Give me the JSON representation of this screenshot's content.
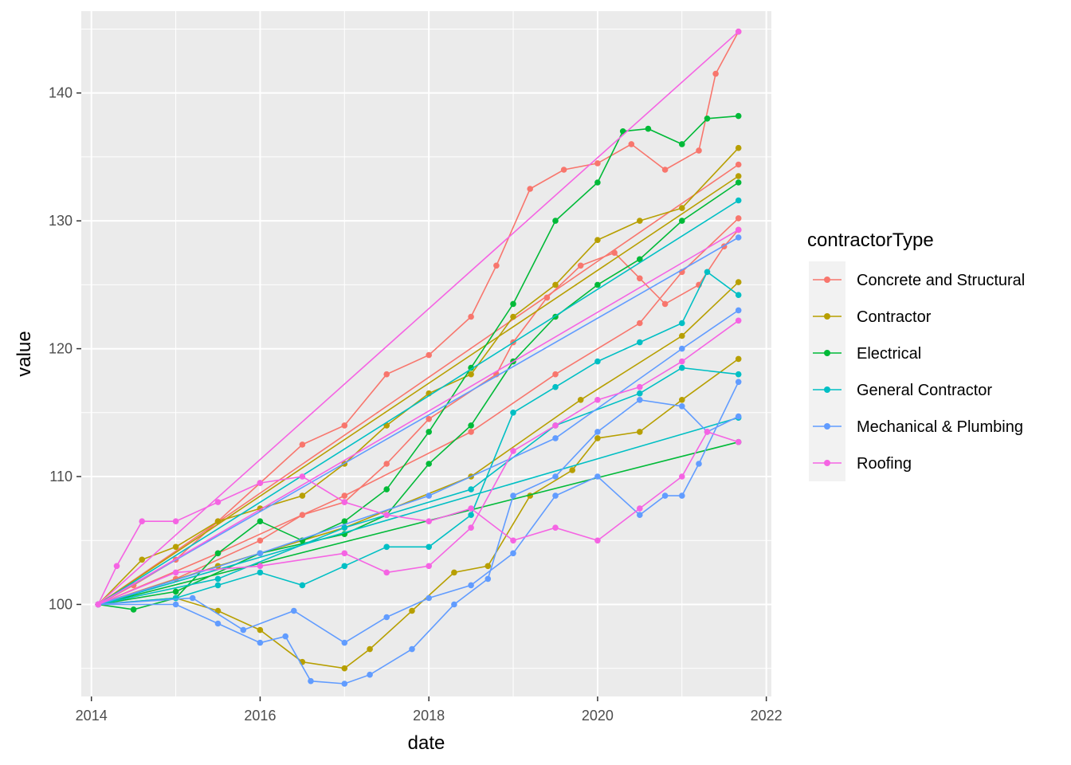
{
  "chart_data": {
    "type": "line",
    "xlabel": "date",
    "ylabel": "value",
    "xlim": [
      2013.88,
      2022.06
    ],
    "ylim": [
      92.8,
      146.4
    ],
    "x_ticks": [
      2014,
      2016,
      2018,
      2020,
      2022
    ],
    "x_tick_labels": [
      "2014",
      "2016",
      "2018",
      "2020",
      "2022"
    ],
    "y_ticks": [
      100,
      110,
      120,
      130,
      140
    ],
    "y_tick_labels": [
      "100",
      "110",
      "120",
      "130",
      "140"
    ],
    "grid": true,
    "legend": {
      "title": "contractorType",
      "position": "right"
    },
    "colors": {
      "Concrete and Structural": "#F8766D",
      "Contractor": "#B79F00",
      "Electrical": "#00BA38",
      "General Contractor": "#00BFC4",
      "Mechanical & Plumbing": "#619CFF",
      "Roofing": "#F564E3"
    },
    "series": [
      {
        "name": "Concrete and Structural",
        "paths": [
          {
            "x": [
              2014.08,
              2014.5,
              2015.0,
              2015.5,
              2016.0,
              2016.5,
              2017.0,
              2017.5,
              2018.0,
              2018.5,
              2018.8,
              2019.2,
              2019.6,
              2020.0,
              2020.4,
              2020.8,
              2021.2,
              2021.4,
              2021.67
            ],
            "y": [
              100,
              101.5,
              103.5,
              106.5,
              109.5,
              112.5,
              114.0,
              118.0,
              119.5,
              122.5,
              126.5,
              132.5,
              134.0,
              134.5,
              136.0,
              134.0,
              135.5,
              141.5,
              144.8
            ]
          },
          {
            "x": [
              2014.08,
              2015.0,
              2016.0,
              2016.5,
              2017.0,
              2017.5,
              2018.0,
              2018.8,
              2019.0,
              2019.4,
              2019.8,
              2020.2,
              2020.5,
              2020.8,
              2021.2,
              2021.5,
              2021.67
            ],
            "y": [
              100,
              102.0,
              105.0,
              107.0,
              108.0,
              111.0,
              114.5,
              118.0,
              120.5,
              124.0,
              126.5,
              127.5,
              125.5,
              123.5,
              125.0,
              128.0,
              129.3
            ]
          },
          {
            "x": [
              2014.08,
              2015.5,
              2017.0,
              2018.5,
              2019.5,
              2020.5,
              2021.0,
              2021.67
            ],
            "y": [
              100,
              104.0,
              108.5,
              113.5,
              118.0,
              122.0,
              126.0,
              130.2
            ]
          },
          {
            "x": [
              2014.08,
              2021.67
            ],
            "y": [
              100,
              134.4
            ]
          }
        ]
      },
      {
        "name": "Contractor",
        "paths": [
          {
            "x": [
              2014.08,
              2014.6,
              2015.0,
              2015.5,
              2016.0,
              2016.5,
              2017.0,
              2017.5,
              2018.0,
              2018.5,
              2019.0,
              2019.5,
              2020.0,
              2020.5,
              2021.0,
              2021.67
            ],
            "y": [
              100,
              103.5,
              104.5,
              106.5,
              107.5,
              108.5,
              111.0,
              114.0,
              116.5,
              118.0,
              122.5,
              125.0,
              128.5,
              130.0,
              131.0,
              135.7
            ]
          },
          {
            "x": [
              2014.08,
              2015.0,
              2015.5,
              2016.0,
              2016.5,
              2017.0,
              2017.3,
              2017.8,
              2018.3,
              2018.7,
              2019.2,
              2019.7,
              2020.0,
              2020.5,
              2021.0,
              2021.67
            ],
            "y": [
              100,
              100.5,
              99.5,
              98.0,
              95.5,
              95.0,
              96.5,
              99.5,
              102.5,
              103.0,
              108.5,
              110.5,
              113.0,
              113.5,
              116.0,
              119.2
            ]
          },
          {
            "x": [
              2014.08,
              2015.5,
              2017.0,
              2018.5,
              2019.8,
              2021.0,
              2021.67
            ],
            "y": [
              100,
              103.0,
              106.0,
              110.0,
              116.0,
              121.0,
              125.2
            ]
          },
          {
            "x": [
              2014.08,
              2021.67
            ],
            "y": [
              100,
              133.5
            ]
          }
        ]
      },
      {
        "name": "Electrical",
        "paths": [
          {
            "x": [
              2014.08,
              2014.5,
              2015.0,
              2015.5,
              2016.0,
              2016.5,
              2017.0,
              2017.5,
              2018.0,
              2018.5,
              2019.0,
              2019.5,
              2020.0,
              2020.3,
              2020.6,
              2021.0,
              2021.3,
              2021.67
            ],
            "y": [
              100,
              99.6,
              100.5,
              104.0,
              106.5,
              105.0,
              106.5,
              109.0,
              113.5,
              118.5,
              123.5,
              130.0,
              133.0,
              137.0,
              137.2,
              136.0,
              138.0,
              138.2
            ]
          },
          {
            "x": [
              2014.08,
              2015.0,
              2016.0,
              2017.0,
              2017.5,
              2018.0,
              2018.5,
              2019.0,
              2019.5,
              2020.0,
              2020.5,
              2021.0,
              2021.67
            ],
            "y": [
              100,
              101.0,
              104.0,
              105.5,
              107.0,
              111.0,
              114.0,
              119.0,
              122.5,
              125.0,
              127.0,
              130.0,
              133.0
            ]
          },
          {
            "x": [
              2014.08,
              2021.67
            ],
            "y": [
              100,
              112.7
            ]
          }
        ]
      },
      {
        "name": "General Contractor",
        "paths": [
          {
            "x": [
              2014.08,
              2015.0,
              2015.5,
              2016.0,
              2016.5,
              2017.0,
              2017.5,
              2018.0,
              2018.5,
              2019.0,
              2019.5,
              2020.0,
              2020.5,
              2021.0,
              2021.3,
              2021.67
            ],
            "y": [
              100,
              100.5,
              101.5,
              102.5,
              101.5,
              103.0,
              104.5,
              104.5,
              107.0,
              115.0,
              117.0,
              119.0,
              120.5,
              122.0,
              126.0,
              124.2
            ]
          },
          {
            "x": [
              2014.08,
              2015.5,
              2017.0,
              2018.5,
              2019.5,
              2020.5,
              2021.0,
              2021.67
            ],
            "y": [
              100,
              102.0,
              106.0,
              109.0,
              114.0,
              116.5,
              118.5,
              118.0
            ]
          },
          {
            "x": [
              2014.08,
              2021.67
            ],
            "y": [
              100,
              131.6
            ]
          },
          {
            "x": [
              2014.08,
              2021.67
            ],
            "y": [
              100,
              114.6
            ]
          }
        ]
      },
      {
        "name": "Mechanical & Plumbing",
        "paths": [
          {
            "x": [
              2014.08,
              2015.0,
              2015.5,
              2016.0,
              2016.3,
              2016.6,
              2017.0,
              2017.3,
              2017.8,
              2018.3,
              2018.7,
              2019.0,
              2019.5,
              2020.0,
              2020.5,
              2021.0,
              2021.3,
              2021.67
            ],
            "y": [
              100,
              100.0,
              98.5,
              97.0,
              97.5,
              94.0,
              93.8,
              94.5,
              96.5,
              100.0,
              102.0,
              108.5,
              110.0,
              113.5,
              116.0,
              115.5,
              113.5,
              114.7
            ]
          },
          {
            "x": [
              2014.08,
              2015.2,
              2015.8,
              2016.4,
              2017.0,
              2017.5,
              2018.0,
              2018.5,
              2019.0,
              2019.5,
              2020.0,
              2020.5,
              2020.8,
              2021.0,
              2021.2,
              2021.67
            ],
            "y": [
              100,
              100.5,
              98.0,
              99.5,
              97.0,
              99.0,
              100.5,
              101.5,
              104.0,
              108.5,
              110.0,
              107.0,
              108.5,
              108.5,
              111.0,
              117.4
            ]
          },
          {
            "x": [
              2014.08,
              2016.0,
              2018.0,
              2019.5,
              2021.0,
              2021.67
            ],
            "y": [
              100,
              104.0,
              108.5,
              113.0,
              120.0,
              123.0
            ]
          },
          {
            "x": [
              2014.08,
              2021.67
            ],
            "y": [
              100,
              128.7
            ]
          }
        ]
      },
      {
        "name": "Roofing",
        "paths": [
          {
            "x": [
              2014.08,
              2014.3,
              2014.6,
              2015.0,
              2015.5,
              2016.0,
              2016.5,
              2017.0,
              2017.5,
              2018.0,
              2018.5,
              2019.0,
              2019.5,
              2020.0,
              2020.5,
              2021.0,
              2021.3,
              2021.67
            ],
            "y": [
              100,
              103.0,
              106.5,
              106.5,
              108.0,
              109.5,
              110.0,
              108.0,
              107.0,
              106.5,
              107.5,
              105.0,
              106.0,
              105.0,
              107.5,
              110.0,
              113.5,
              112.7
            ]
          },
          {
            "x": [
              2014.08,
              2015.0,
              2016.0,
              2017.0,
              2017.5,
              2018.0,
              2018.5,
              2019.0,
              2019.5,
              2020.0,
              2020.5,
              2021.0,
              2021.67
            ],
            "y": [
              100,
              102.5,
              103.0,
              104.0,
              102.5,
              103.0,
              106.0,
              112.0,
              114.0,
              116.0,
              117.0,
              119.0,
              122.2
            ]
          },
          {
            "x": [
              2014.08,
              2021.67
            ],
            "y": [
              100,
              144.8
            ]
          },
          {
            "x": [
              2014.08,
              2021.67
            ],
            "y": [
              100,
              129.3
            ]
          }
        ]
      }
    ]
  }
}
